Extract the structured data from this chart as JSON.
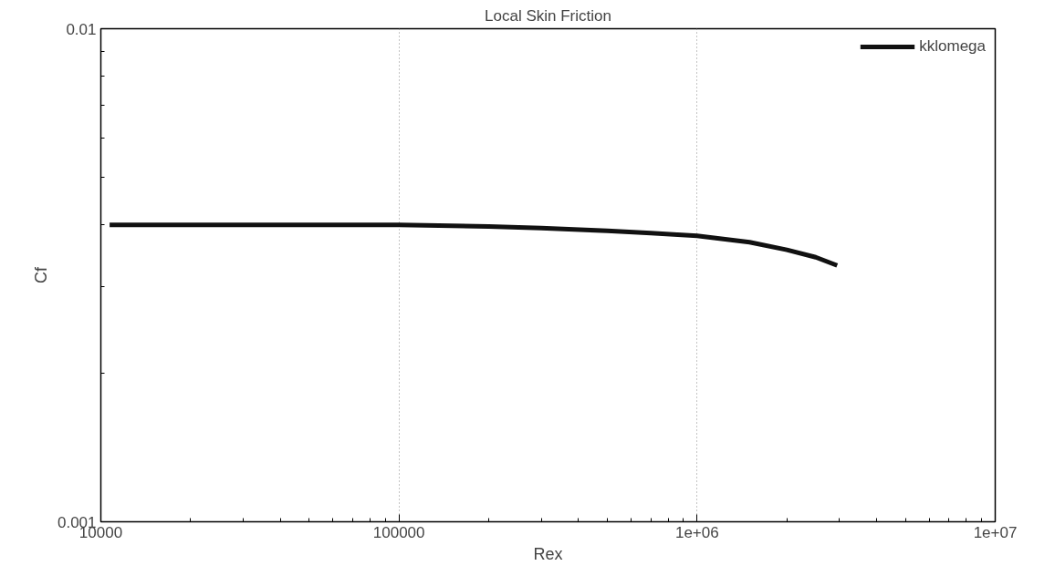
{
  "chart_data": {
    "type": "line",
    "title": "Local Skin Friction",
    "xlabel": "Rex",
    "ylabel": "Cf",
    "log": "xy",
    "xlim": [
      10000,
      10000000
    ],
    "ylim": [
      0.001,
      0.01
    ],
    "xticks": [
      10000,
      100000,
      {
        "value": 1000000,
        "label": "1e+06"
      },
      {
        "value": 10000000,
        "label": "1e+07"
      }
    ],
    "yticks": [
      0.001,
      0.01
    ],
    "grid": "x",
    "legend": "top right",
    "line_style": "solid",
    "marker": "none",
    "x": [
      10700,
      20000,
      40000,
      70000,
      100000,
      200000,
      300000,
      500000,
      700000,
      1000000,
      1500000,
      2000000,
      2500000,
      2950000
    ],
    "series": [
      {
        "name": "kklomega",
        "color": "#111111",
        "values": [
          0.004,
          0.004,
          0.004,
          0.004,
          0.004,
          0.00397,
          0.00394,
          0.00389,
          0.00385,
          0.0038,
          0.00369,
          0.00356,
          0.00344,
          0.00331
        ]
      }
    ]
  }
}
